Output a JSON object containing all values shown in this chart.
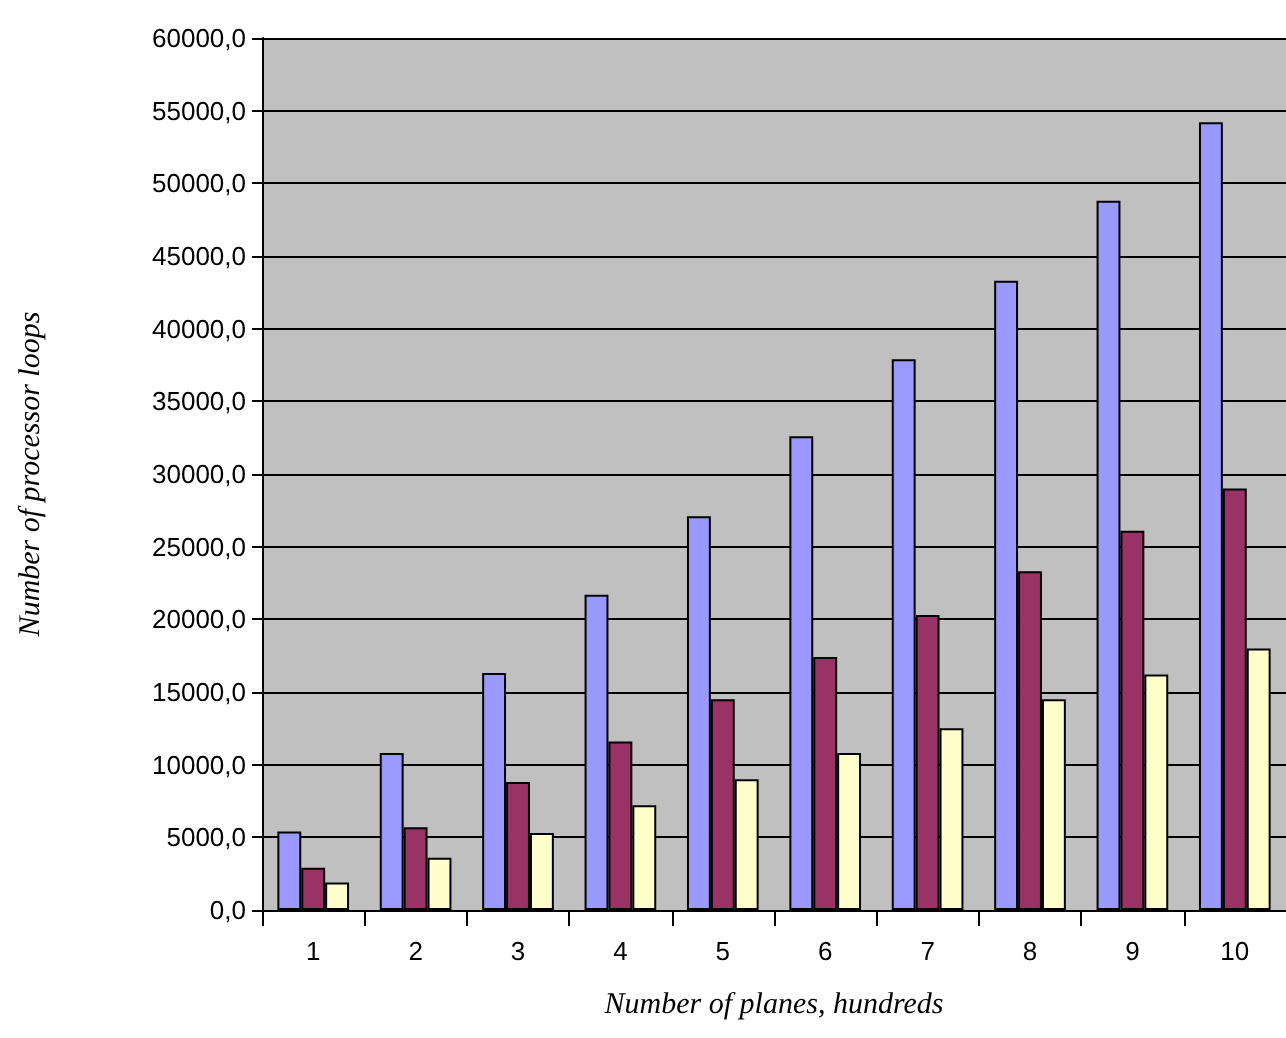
{
  "chart_data": {
    "type": "bar",
    "xlabel": "Number of planes, hundreds",
    "ylabel": "Number of processor loops",
    "categories": [
      "1",
      "2",
      "3",
      "4",
      "5",
      "6",
      "7",
      "8",
      "9",
      "10"
    ],
    "series": [
      {
        "color": "#9999ff",
        "values": [
          5400,
          10800,
          16300,
          21700,
          27100,
          32600,
          37900,
          43300,
          48800,
          54200
        ]
      },
      {
        "color": "#993366",
        "values": [
          2900,
          5700,
          8800,
          11600,
          14500,
          17400,
          20300,
          23300,
          26100,
          29000
        ]
      },
      {
        "color": "#ffffcc",
        "values": [
          1900,
          3600,
          5300,
          7200,
          9000,
          10800,
          12500,
          14500,
          16200,
          18000
        ]
      }
    ],
    "ylim": [
      0,
      60000
    ],
    "yticks": [
      {
        "value": 0,
        "label": "0,0"
      },
      {
        "value": 5000,
        "label": "5000,0"
      },
      {
        "value": 10000,
        "label": "10000,0"
      },
      {
        "value": 15000,
        "label": "15000,0"
      },
      {
        "value": 20000,
        "label": "20000,0"
      },
      {
        "value": 25000,
        "label": "25000,0"
      },
      {
        "value": 30000,
        "label": "30000,0"
      },
      {
        "value": 35000,
        "label": "35000,0"
      },
      {
        "value": 40000,
        "label": "40000,0"
      },
      {
        "value": 45000,
        "label": "45000,0"
      },
      {
        "value": 50000,
        "label": "50000,0"
      },
      {
        "value": 55000,
        "label": "55000,0"
      },
      {
        "value": 60000,
        "label": "60000,0"
      }
    ],
    "grid": "y"
  }
}
